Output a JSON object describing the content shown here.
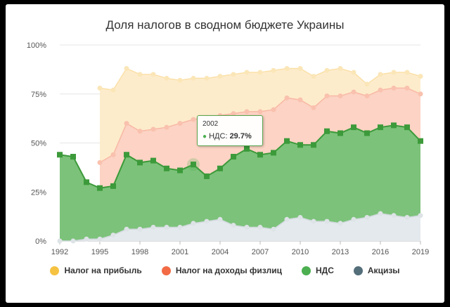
{
  "chart_data": {
    "type": "area",
    "title": "Доля налогов в сводном бюджете Украины",
    "x": [
      1992,
      1993,
      1994,
      1995,
      1996,
      1997,
      1998,
      1999,
      2000,
      2001,
      2002,
      2003,
      2004,
      2005,
      2006,
      2007,
      2008,
      2009,
      2010,
      2011,
      2012,
      2013,
      2014,
      2015,
      2016,
      2017,
      2018,
      2019
    ],
    "x_ticks": [
      "1992",
      "1995",
      "1998",
      "2001",
      "2004",
      "2007",
      "2010",
      "2013",
      "2016",
      "2019"
    ],
    "y_ticks": [
      "0%",
      "25%",
      "50%",
      "75%",
      "100%"
    ],
    "ylim": [
      0,
      100
    ],
    "grid": true,
    "stacking": "cumulative",
    "legend_position": "bottom",
    "series": [
      {
        "name": "Налог на прибыль",
        "color": "#f5c242",
        "cumulative": [
          null,
          null,
          null,
          78,
          77,
          88,
          85,
          85,
          83,
          82,
          83,
          83,
          84,
          85,
          86,
          86,
          87,
          88,
          88,
          84,
          87,
          88,
          86,
          80,
          85,
          86,
          86,
          84
        ]
      },
      {
        "name": "Налог на доходы физлиц",
        "color": "#f26b45",
        "cumulative": [
          null,
          null,
          null,
          40,
          44,
          60,
          56,
          57,
          58,
          60,
          62,
          63,
          64,
          65,
          66,
          66,
          67,
          73,
          72,
          68,
          74,
          74,
          76,
          74,
          77,
          78,
          78,
          75
        ]
      },
      {
        "name": "НДС",
        "color": "#4caf50",
        "cumulative": [
          44,
          43,
          30,
          27,
          28,
          44,
          40,
          41,
          37,
          36,
          39,
          33,
          37,
          43,
          47,
          44,
          45,
          51,
          49,
          49,
          56,
          55,
          58,
          55,
          58,
          59,
          58,
          51
        ]
      },
      {
        "name": "Акцизы",
        "color": "#546e7a",
        "cumulative": [
          0,
          0,
          1,
          1,
          3,
          6,
          6,
          7,
          7,
          7,
          9,
          10,
          11,
          8,
          7,
          7,
          6,
          11,
          12,
          10,
          10,
          9,
          11,
          12,
          14,
          13,
          12,
          13
        ]
      }
    ]
  },
  "tooltip": {
    "year": "2002",
    "label": "НДС: ",
    "value": "29.7%",
    "bullet": "●",
    "highlight_index": 10,
    "series_index": 2
  }
}
